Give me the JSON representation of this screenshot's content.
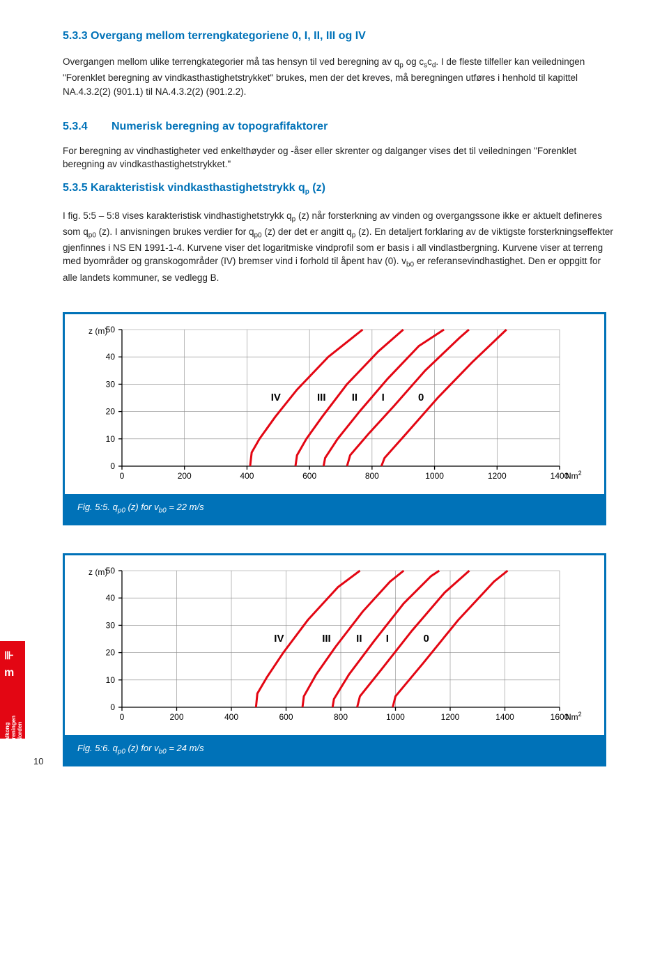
{
  "section_533": {
    "title": "5.3.3 Overgang mellom terrengkategoriene 0, I, II, III og IV",
    "p1_a": "Overgangen mellom ulike terrengkategorier må tas hensyn til ved beregning av q",
    "p1_sub1": "p",
    "p1_b": " og c",
    "p1_sub2": "s",
    "p1_c": "c",
    "p1_sub3": "d",
    "p1_d": ". I de fleste tilfeller kan veiledningen \"Forenklet beregning av vindkasthastighetstrykket\" brukes, men der det kreves, må beregningen utføres i henhold til kapittel NA.4.3.2(2) (901.1) til NA.4.3.2(2) (901.2.2)."
  },
  "section_534": {
    "num": "5.3.4",
    "title": "Numerisk beregning av topografifaktorer",
    "p1": "For beregning av vindhastigheter ved enkelthøyder og -åser eller skrenter og dalganger vises det til veiledningen \"Forenklet beregning av vindkasthastighetstrykket.\""
  },
  "section_535": {
    "title_a": "5.3.5 Karakteristisk vindkasthastighetstrykk q",
    "title_sub": "p",
    "title_b": " (z)",
    "p1_a": "I fig. 5:5 – 5:8 vises karakteristisk vindhastighetstrykk q",
    "p1_s1": "p",
    "p1_b": " (z) når forsterkning av vinden og overgangssone ikke er aktuelt defineres som q",
    "p1_s2": "p0",
    "p1_c": " (z). I anvisningen brukes verdier for q",
    "p1_s3": "p0",
    "p1_d": " (z) der det er angitt q",
    "p1_s4": "p",
    "p1_e": " (z). En detaljert forklaring av de viktigste forsterkningseffekter gjenfinnes i NS EN 1991-1-4. Kurvene viser det logaritmiske vindprofil som er basis i all vindlastbergning. Kurvene viser at terreng med byområder og granskogområder (IV) bremser vind i forhold til åpent hav (0). v",
    "p1_s5": "b0",
    "p1_f": " er referansevindhastighet. Den er oppgitt for alle landets kommuner, se vedlegg B."
  },
  "chart1": {
    "ylabel": "z (m)",
    "yticks": [
      0,
      10,
      20,
      30,
      40,
      50
    ],
    "xticks": [
      0,
      200,
      400,
      600,
      800,
      1000,
      1200,
      1400
    ],
    "xunit": "Nm2",
    "xmax": 1400,
    "curve_labels": [
      "IV",
      "III",
      "II",
      "I",
      "0"
    ],
    "curves": {
      "IV": [
        [
          410,
          0
        ],
        [
          415,
          5
        ],
        [
          440,
          10
        ],
        [
          490,
          18
        ],
        [
          560,
          28
        ],
        [
          660,
          40
        ],
        [
          770,
          50
        ]
      ],
      "III": [
        [
          555,
          0
        ],
        [
          560,
          4
        ],
        [
          590,
          10
        ],
        [
          640,
          18
        ],
        [
          720,
          30
        ],
        [
          820,
          42
        ],
        [
          900,
          50
        ]
      ],
      "II": [
        [
          645,
          0
        ],
        [
          650,
          3
        ],
        [
          690,
          10
        ],
        [
          760,
          20
        ],
        [
          850,
          32
        ],
        [
          950,
          44
        ],
        [
          1030,
          50
        ]
      ],
      "I": [
        [
          720,
          0
        ],
        [
          730,
          4
        ],
        [
          790,
          12
        ],
        [
          870,
          22
        ],
        [
          970,
          35
        ],
        [
          1080,
          47
        ],
        [
          1110,
          50
        ]
      ],
      "0": [
        [
          830,
          0
        ],
        [
          840,
          3
        ],
        [
          910,
          12
        ],
        [
          1010,
          25
        ],
        [
          1120,
          38
        ],
        [
          1230,
          50
        ]
      ]
    },
    "caption_a": "Fig. 5:5.   q",
    "caption_s1": "p0",
    "caption_b": " (z) for v",
    "caption_s2": "b0",
    "caption_c": " = 22 m/s"
  },
  "chart2": {
    "ylabel": "z (m)",
    "yticks": [
      0,
      10,
      20,
      30,
      40,
      50
    ],
    "xticks": [
      0,
      200,
      400,
      600,
      800,
      1000,
      1200,
      1400,
      1600
    ],
    "xunit": "Nm2",
    "xmax": 1600,
    "curve_labels": [
      "IV",
      "III",
      "II",
      "I",
      "0"
    ],
    "curves": {
      "IV": [
        [
          490,
          0
        ],
        [
          495,
          5
        ],
        [
          530,
          11
        ],
        [
          590,
          20
        ],
        [
          680,
          32
        ],
        [
          790,
          44
        ],
        [
          870,
          50
        ]
      ],
      "III": [
        [
          660,
          0
        ],
        [
          665,
          4
        ],
        [
          710,
          12
        ],
        [
          780,
          22
        ],
        [
          880,
          35
        ],
        [
          980,
          46
        ],
        [
          1030,
          50
        ]
      ],
      "II": [
        [
          770,
          0
        ],
        [
          775,
          3
        ],
        [
          830,
          12
        ],
        [
          920,
          24
        ],
        [
          1030,
          38
        ],
        [
          1130,
          48
        ],
        [
          1160,
          50
        ]
      ],
      "I": [
        [
          860,
          0
        ],
        [
          870,
          4
        ],
        [
          950,
          14
        ],
        [
          1060,
          28
        ],
        [
          1180,
          42
        ],
        [
          1270,
          50
        ]
      ],
      "0": [
        [
          990,
          0
        ],
        [
          1000,
          4
        ],
        [
          1100,
          16
        ],
        [
          1230,
          32
        ],
        [
          1360,
          46
        ],
        [
          1410,
          50
        ]
      ]
    },
    "caption_a": "Fig. 5:6.   q",
    "caption_s1": "p0",
    "caption_b": " (z) for v",
    "caption_s2": "b0",
    "caption_c": " = 24 m/s"
  },
  "colors": {
    "curve": "#e30613",
    "grid": "#8a8a8a",
    "axis": "#000",
    "accent": "#0072b8"
  },
  "sidebar": {
    "brand1": "Balkong",
    "brand2": "föreningen",
    "brand3": "i Norden"
  },
  "page_number": "10"
}
